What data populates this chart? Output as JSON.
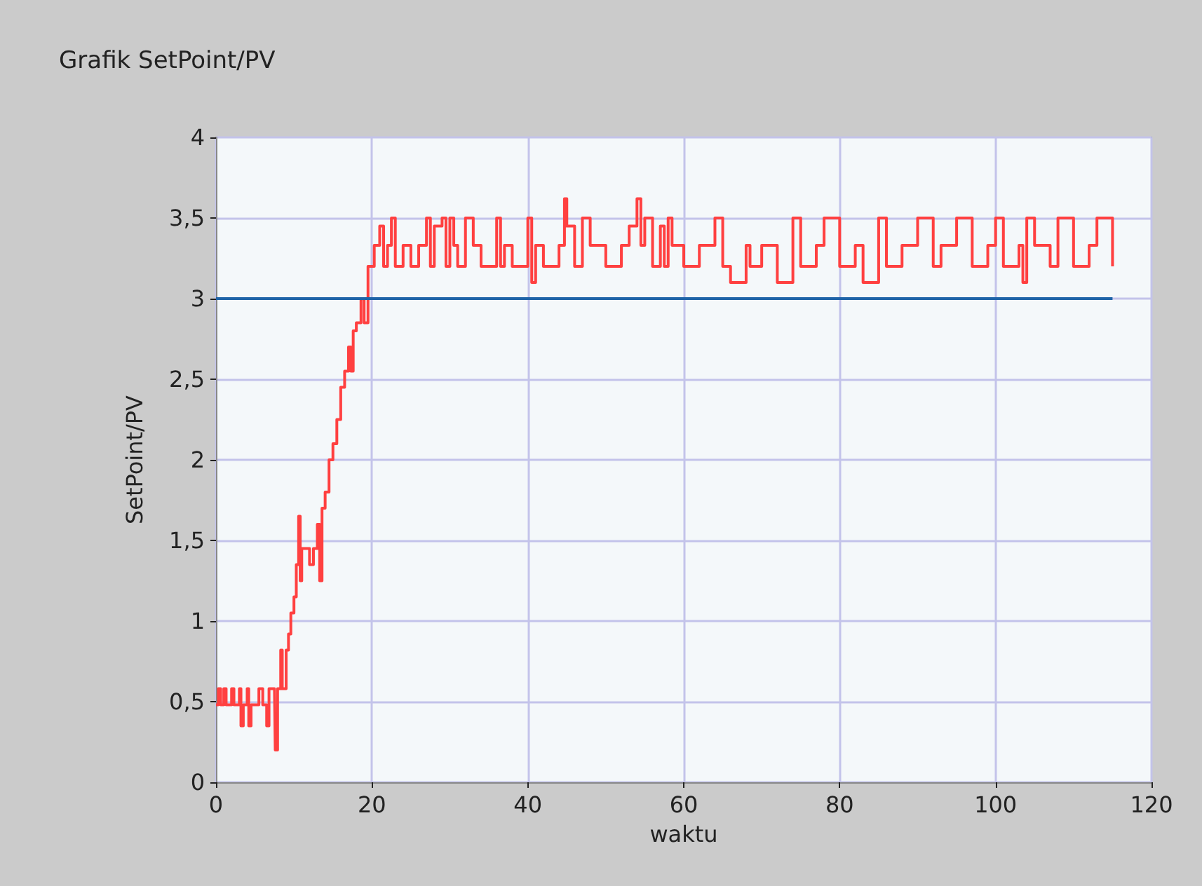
{
  "chart_data": {
    "type": "step",
    "title": "Grafik SetPoint/PV",
    "xlabel": "waktu",
    "ylabel": "SetPoint/PV",
    "xlim": [
      0,
      120
    ],
    "xticks": [
      0,
      20,
      40,
      60,
      80,
      100,
      120
    ],
    "ylim": [
      0,
      4
    ],
    "yticks": [
      0,
      {
        "value": 0.5,
        "label": "0,5"
      },
      1,
      {
        "value": 1.5,
        "label": "1,5"
      },
      2,
      {
        "value": 2.5,
        "label": "2,5"
      },
      3,
      {
        "value": 3.5,
        "label": "3,5"
      },
      4
    ],
    "grid": true,
    "marker": "none",
    "line_style": "solid",
    "series": [
      {
        "color": "#ff4040",
        "x": [
          0,
          0.3,
          0.6,
          1,
          1.3,
          2,
          2.3,
          3,
          3.2,
          3.5,
          4,
          4.2,
          4.5,
          5.5,
          6,
          6.5,
          6.8,
          7.5,
          7.6,
          7.9,
          8.3,
          8.5,
          9,
          9.3,
          9.6,
          10,
          10.3,
          10.6,
          10.8,
          11,
          12,
          12.5,
          13,
          13.3,
          13.6,
          14,
          14.5,
          15,
          15.5,
          16,
          16.5,
          17,
          17.3,
          17.6,
          18,
          18.6,
          19,
          19.5,
          20,
          20.3,
          21,
          21.5,
          22,
          22.5,
          23,
          24,
          25,
          26,
          27,
          27.5,
          28,
          29,
          29.5,
          30,
          30.5,
          31,
          32,
          33,
          34,
          36,
          36.5,
          37,
          38,
          40,
          40.5,
          41,
          42,
          44,
          44.7,
          45,
          46,
          47,
          48,
          50,
          52,
          53,
          54,
          54.5,
          55,
          56,
          57,
          57.5,
          58,
          58.5,
          60,
          62,
          64,
          65,
          66,
          68,
          68.5,
          70,
          72,
          74,
          75,
          77,
          78,
          80,
          82,
          83,
          85,
          86,
          88,
          90,
          92,
          93,
          95,
          97,
          99,
          100,
          101,
          103,
          103.5,
          104,
          105,
          107,
          108,
          110,
          112,
          113,
          115
        ],
        "values": [
          0.48,
          0.58,
          0.48,
          0.58,
          0.48,
          0.58,
          0.48,
          0.58,
          0.35,
          0.48,
          0.58,
          0.35,
          0.48,
          0.58,
          0.48,
          0.35,
          0.58,
          0.58,
          0.2,
          0.58,
          0.82,
          0.58,
          0.82,
          0.92,
          1.05,
          1.15,
          1.35,
          1.65,
          1.25,
          1.45,
          1.35,
          1.45,
          1.6,
          1.25,
          1.7,
          1.8,
          2.0,
          2.1,
          2.25,
          2.45,
          2.55,
          2.7,
          2.55,
          2.8,
          2.85,
          3.0,
          2.85,
          3.2,
          3.2,
          3.33,
          3.45,
          3.2,
          3.33,
          3.5,
          3.2,
          3.33,
          3.2,
          3.33,
          3.5,
          3.2,
          3.45,
          3.5,
          3.2,
          3.5,
          3.33,
          3.2,
          3.5,
          3.33,
          3.2,
          3.5,
          3.2,
          3.33,
          3.2,
          3.5,
          3.1,
          3.33,
          3.2,
          3.33,
          3.62,
          3.45,
          3.2,
          3.5,
          3.33,
          3.2,
          3.33,
          3.45,
          3.62,
          3.33,
          3.5,
          3.2,
          3.45,
          3.2,
          3.5,
          3.33,
          3.2,
          3.33,
          3.5,
          3.2,
          3.1,
          3.33,
          3.2,
          3.33,
          3.1,
          3.5,
          3.2,
          3.33,
          3.5,
          3.2,
          3.33,
          3.1,
          3.5,
          3.2,
          3.33,
          3.5,
          3.2,
          3.33,
          3.5,
          3.2,
          3.33,
          3.5,
          3.2,
          3.33,
          3.1,
          3.5,
          3.33,
          3.2,
          3.5,
          3.2,
          3.33,
          3.5,
          3.2
        ]
      },
      {
        "color": "#1f64a8",
        "x": [
          0,
          115
        ],
        "values": [
          3,
          3
        ]
      }
    ]
  }
}
